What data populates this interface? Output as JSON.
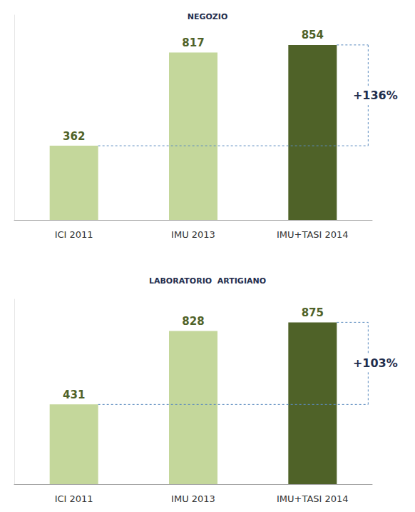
{
  "chart_data": [
    {
      "type": "bar",
      "title": "NEGOZIO",
      "categories": [
        "ICI 2011",
        "IMU 2013",
        "IMU+TASI 2014"
      ],
      "values": [
        362,
        817,
        854
      ],
      "colors": [
        "#c4d79b",
        "#c4d79b",
        "#4f6228"
      ],
      "ylim": [
        0,
        1000
      ],
      "data_labels": true,
      "tick_labels": "x",
      "grid": false,
      "annotation": "+136%"
    },
    {
      "type": "bar",
      "title": "LABORATORIO  ARTIGIANO",
      "categories": [
        "ICI 2011",
        "IMU 2013",
        "IMU+TASI 2014"
      ],
      "values": [
        431,
        828,
        875
      ],
      "colors": [
        "#c4d79b",
        "#c4d79b",
        "#4f6228"
      ],
      "ylim": [
        0,
        1000
      ],
      "data_labels": true,
      "tick_labels": "x",
      "grid": false,
      "annotation": "+103%"
    }
  ]
}
